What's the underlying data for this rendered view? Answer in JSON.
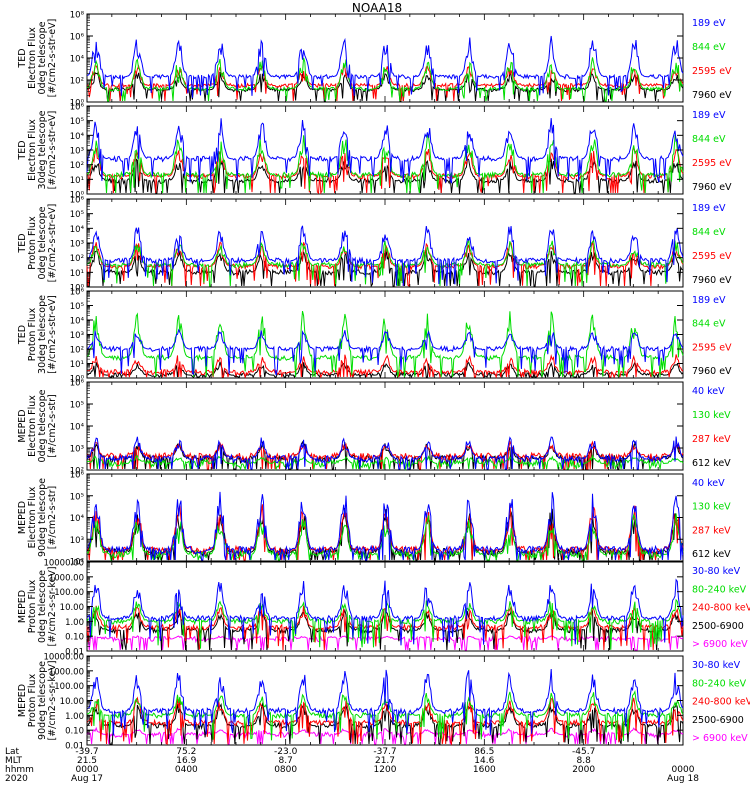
{
  "title": "NOAA18",
  "chart_data": {
    "type": "line",
    "title": "NOAA18",
    "xlabel": "",
    "x_time_ticks": [
      "00:00",
      "04:00",
      "08:00",
      "12:00",
      "16:00",
      "20:00",
      "00:00"
    ],
    "footer": {
      "row_labels": [
        "Lat",
        "MLT",
        "hhmm",
        "2020"
      ],
      "lat": [
        "-39.7",
        "75.2",
        "-23.0",
        "-37.7",
        "86.5",
        "-45.7"
      ],
      "mlt": [
        "21.5",
        "16.9",
        "8.7",
        "21.7",
        "14.6",
        "8.8"
      ],
      "hhmm": [
        "0000",
        "0400",
        "0800",
        "1200",
        "1600",
        "2000",
        "0000"
      ],
      "dates": [
        "Aug 17",
        "Aug 18"
      ]
    },
    "panels": [
      {
        "id": "ted-e-0",
        "ylabel": [
          "TED",
          "Electron Flux",
          "0deg telescope",
          "[#/cm2-s-str-eV]"
        ],
        "scale": "exp",
        "yticks": [
          "10⁰",
          "10²",
          "10⁴",
          "10⁶",
          "10⁸"
        ],
        "y_range_log": [
          0,
          8
        ],
        "series": [
          {
            "name": "7960 eV",
            "color": "#000000",
            "baseline": 1.1,
            "peak": 2.6
          },
          {
            "name": "2595 eV",
            "color": "#ff0000",
            "baseline": 1.5,
            "peak": 3.2
          },
          {
            "name": "844 eV",
            "color": "#00dd00",
            "baseline": 1.2,
            "peak": 3.8
          },
          {
            "name": "189 eV",
            "color": "#0000ff",
            "baseline": 2.3,
            "peak": 5.6
          }
        ]
      },
      {
        "id": "ted-e-30",
        "ylabel": [
          "TED",
          "Electron Flux",
          "30deg telescope",
          "[#/cm2-s-str-eV]"
        ],
        "scale": "exp",
        "yticks": [
          "10⁰",
          "10¹",
          "10²",
          "10³",
          "10⁴",
          "10⁵",
          "10⁶"
        ],
        "y_range_log": [
          0,
          6
        ],
        "series": [
          {
            "name": "7960 eV",
            "color": "#000000",
            "baseline": 0.9,
            "peak": 2.3
          },
          {
            "name": "2595 eV",
            "color": "#ff0000",
            "baseline": 1.2,
            "peak": 3.0
          },
          {
            "name": "844 eV",
            "color": "#00dd00",
            "baseline": 1.3,
            "peak": 3.8
          },
          {
            "name": "189 eV",
            "color": "#0000ff",
            "baseline": 2.4,
            "peak": 4.9
          }
        ]
      },
      {
        "id": "ted-p-0",
        "ylabel": [
          "TED",
          "Proton Flux",
          "0deg telescope",
          "[#/cm2-s-str-eV]"
        ],
        "scale": "exp",
        "yticks": [
          "10⁰",
          "10¹",
          "10²",
          "10³",
          "10⁴",
          "10⁵",
          "10⁶"
        ],
        "y_range_log": [
          0,
          6
        ],
        "series": [
          {
            "name": "7960 eV",
            "color": "#000000",
            "baseline": 1.0,
            "peak": 2.4
          },
          {
            "name": "2595 eV",
            "color": "#ff0000",
            "baseline": 1.4,
            "peak": 2.9
          },
          {
            "name": "844 eV",
            "color": "#00dd00",
            "baseline": 1.5,
            "peak": 3.0
          },
          {
            "name": "189 eV",
            "color": "#0000ff",
            "baseline": 1.8,
            "peak": 4.0
          }
        ]
      },
      {
        "id": "ted-p-30",
        "ylabel": [
          "TED",
          "Proton Flux",
          "30deg telescope",
          "[#/cm2-s-str-eV]"
        ],
        "scale": "exp",
        "yticks": [
          "10⁰",
          "10¹",
          "10²",
          "10³",
          "10⁴",
          "10⁵",
          "10⁶"
        ],
        "y_range_log": [
          0,
          6
        ],
        "series": [
          {
            "name": "7960 eV",
            "color": "#000000",
            "baseline": 0.2,
            "peak": 1.0
          },
          {
            "name": "2595 eV",
            "color": "#ff0000",
            "baseline": 0.4,
            "peak": 1.5
          },
          {
            "name": "844 eV",
            "color": "#00dd00",
            "baseline": 1.4,
            "peak": 4.3
          },
          {
            "name": "189 eV",
            "color": "#0000ff",
            "baseline": 2.0,
            "peak": 3.2
          }
        ]
      },
      {
        "id": "meped-e-0",
        "ylabel": [
          "MEPED",
          "Electron Flux",
          "0deg telescope",
          "[#/cm2-s-str]"
        ],
        "scale": "exp",
        "yticks": [
          "10²",
          "10³",
          "10⁴",
          "10⁵",
          "10⁶"
        ],
        "y_range_log": [
          2,
          6
        ],
        "series": [
          {
            "name": "612 keV",
            "color": "#000000",
            "baseline": 2.5,
            "peak": 3.2
          },
          {
            "name": "287 keV",
            "color": "#ff0000",
            "baseline": 2.6,
            "peak": 3.2
          },
          {
            "name": "130 keV",
            "color": "#00dd00",
            "baseline": 2.3,
            "peak": 2.6
          },
          {
            "name": "40 keV",
            "color": "#0000ff",
            "baseline": 2.5,
            "peak": 3.4
          }
        ]
      },
      {
        "id": "meped-e-90",
        "ylabel": [
          "MEPED",
          "Electron Flux",
          "90deg telescope",
          "[#/cm2-s-str]"
        ],
        "scale": "exp",
        "yticks": [
          "10²",
          "10³",
          "10⁴",
          "10⁵",
          "10⁶"
        ],
        "y_range_log": [
          2,
          6
        ],
        "series": [
          {
            "name": "612 keV",
            "color": "#000000",
            "baseline": 2.4,
            "peak": 4.2
          },
          {
            "name": "287 keV",
            "color": "#ff0000",
            "baseline": 2.5,
            "peak": 4.4
          },
          {
            "name": "130 keV",
            "color": "#00dd00",
            "baseline": 2.3,
            "peak": 4.0
          },
          {
            "name": "40 keV",
            "color": "#0000ff",
            "baseline": 2.5,
            "peak": 5.0
          }
        ]
      },
      {
        "id": "meped-p-0",
        "ylabel": [
          "MEPED",
          "Proton Flux",
          "0deg telescope",
          "[#/cm2-s-sr-keV]"
        ],
        "scale": "dec",
        "yticks": [
          "0.01",
          "0.10",
          "1.00",
          "10.00",
          "100.00",
          "1000.00",
          "10000.00"
        ],
        "y_range_log": [
          -2,
          4
        ],
        "series": [
          {
            "name": "> 6900 keV",
            "color": "#ff00ff",
            "baseline": -1.2,
            "peak": -1.0
          },
          {
            "name": "2500-6900",
            "color": "#000000",
            "baseline": -0.6,
            "peak": 0.6
          },
          {
            "name": "240-800 keV",
            "color": "#ff0000",
            "baseline": -0.4,
            "peak": 0.9
          },
          {
            "name": "80-240 keV",
            "color": "#00dd00",
            "baseline": 0.0,
            "peak": 1.3
          },
          {
            "name": "30-80 keV",
            "color": "#0000ff",
            "baseline": 0.2,
            "peak": 2.6
          }
        ]
      },
      {
        "id": "meped-p-90",
        "ylabel": [
          "MEPED",
          "Proton Flux",
          "90deg telescope",
          "[#/cm2-s-sr-keV]"
        ],
        "scale": "dec",
        "yticks": [
          "0.01",
          "0.10",
          "1.00",
          "10.00",
          "100.00",
          "1000.00",
          "10000.00"
        ],
        "y_range_log": [
          -2,
          4
        ],
        "series": [
          {
            "name": "> 6900 keV",
            "color": "#ff00ff",
            "baseline": -1.3,
            "peak": -0.9
          },
          {
            "name": "2500-6900",
            "color": "#000000",
            "baseline": -0.7,
            "peak": 0.7
          },
          {
            "name": "240-800 keV",
            "color": "#ff0000",
            "baseline": -0.5,
            "peak": 1.0
          },
          {
            "name": "80-240 keV",
            "color": "#00dd00",
            "baseline": 0.0,
            "peak": 1.4
          },
          {
            "name": "30-80 keV",
            "color": "#0000ff",
            "baseline": 0.3,
            "peak": 2.8
          }
        ]
      }
    ]
  }
}
